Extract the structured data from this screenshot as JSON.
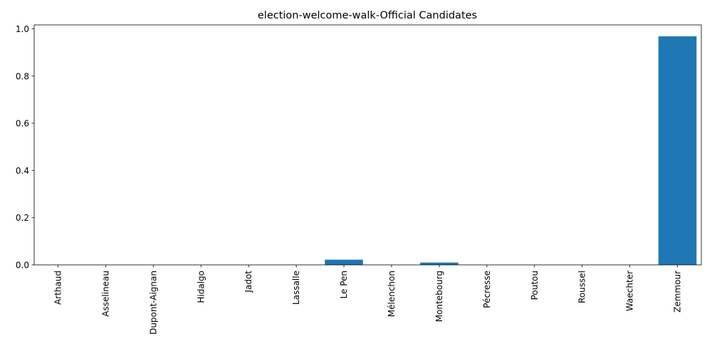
{
  "chart_data": {
    "type": "bar",
    "title": "election-welcome-walk-Official Candidates",
    "xlabel": "",
    "ylabel": "",
    "categories": [
      "Arthaud",
      "Asselineau",
      "Dupont-Aignan",
      "Hidalgo",
      "Jadot",
      "Lassalle",
      "Le Pen",
      "Mélenchon",
      "Montebourg",
      "Pécresse",
      "Poutou",
      "Roussel",
      "Waechter",
      "Zemmour"
    ],
    "values": [
      0,
      0,
      0,
      0,
      0,
      0,
      0.022,
      0,
      0.01,
      0,
      0,
      0,
      0,
      0.968
    ],
    "ylim": [
      0,
      1.0164
    ],
    "yticks": [
      0.0,
      0.2,
      0.4,
      0.6,
      0.8,
      1.0
    ],
    "ytick_labels": [
      "0.0",
      "0.2",
      "0.4",
      "0.6",
      "0.8",
      "1.0"
    ],
    "bar_color": "#1f77b4",
    "grid": false,
    "legend": "none"
  }
}
